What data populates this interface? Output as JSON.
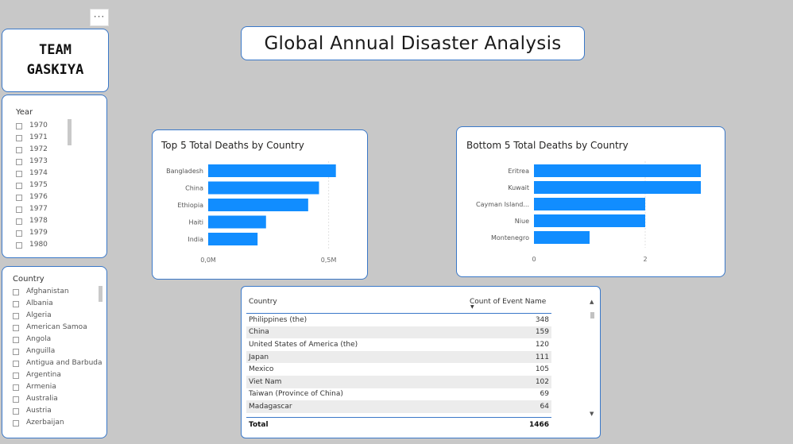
{
  "more_options": "···",
  "logo": {
    "line1": "TEAM",
    "line2": "GASKIYA"
  },
  "title": "Global Annual Disaster Analysis",
  "year_slicer": {
    "title": "Year",
    "items": [
      "1970",
      "1971",
      "1972",
      "1973",
      "1974",
      "1975",
      "1976",
      "1977",
      "1978",
      "1979",
      "1980"
    ]
  },
  "country_slicer": {
    "title": "Country",
    "items": [
      "Afghanistan",
      "Albania",
      "Algeria",
      "American Samoa",
      "Angola",
      "Anguilla",
      "Antigua and Barbuda",
      "Argentina",
      "Armenia",
      "Australia",
      "Austria",
      "Azerbaijan"
    ]
  },
  "chart_data": [
    {
      "type": "bar",
      "orientation": "horizontal",
      "title": "Top 5 Total Deaths by Country",
      "categories": [
        "Bangladesh",
        "China",
        "Ethiopia",
        "Haiti",
        "India"
      ],
      "values": [
        530000,
        460000,
        415000,
        240000,
        205000
      ],
      "xlim": [
        0,
        620000
      ],
      "xticks": [
        {
          "value": 0,
          "label": "0,0M"
        },
        {
          "value": 500000,
          "label": "0,5M"
        }
      ],
      "bar_color": "#118dff",
      "grid": true
    },
    {
      "type": "bar",
      "orientation": "horizontal",
      "title": "Bottom 5 Total Deaths by Country",
      "categories": [
        "Eritrea",
        "Kuwait",
        "Cayman Island...",
        "Niue",
        "Montenegro"
      ],
      "values": [
        3,
        3,
        2,
        2,
        1
      ],
      "xlim": [
        0,
        3.3
      ],
      "xticks": [
        {
          "value": 0,
          "label": "0"
        },
        {
          "value": 2,
          "label": "2"
        }
      ],
      "bar_color": "#118dff",
      "grid": true
    }
  ],
  "table": {
    "columns": [
      "Country",
      "Count of Event Name"
    ],
    "sort_indicator": "▼",
    "rows": [
      {
        "country": "Philippines (the)",
        "count": "348"
      },
      {
        "country": "China",
        "count": "159"
      },
      {
        "country": "United States of America (the)",
        "count": "120"
      },
      {
        "country": "Japan",
        "count": "111"
      },
      {
        "country": "Mexico",
        "count": "105"
      },
      {
        "country": "Viet Nam",
        "count": "102"
      },
      {
        "country": "Taiwan (Province of China)",
        "count": "69"
      },
      {
        "country": "Madagascar",
        "count": "64"
      }
    ],
    "total_label": "Total",
    "total_value": "1466",
    "scroll_up": "▲",
    "scroll_down": "▼"
  }
}
